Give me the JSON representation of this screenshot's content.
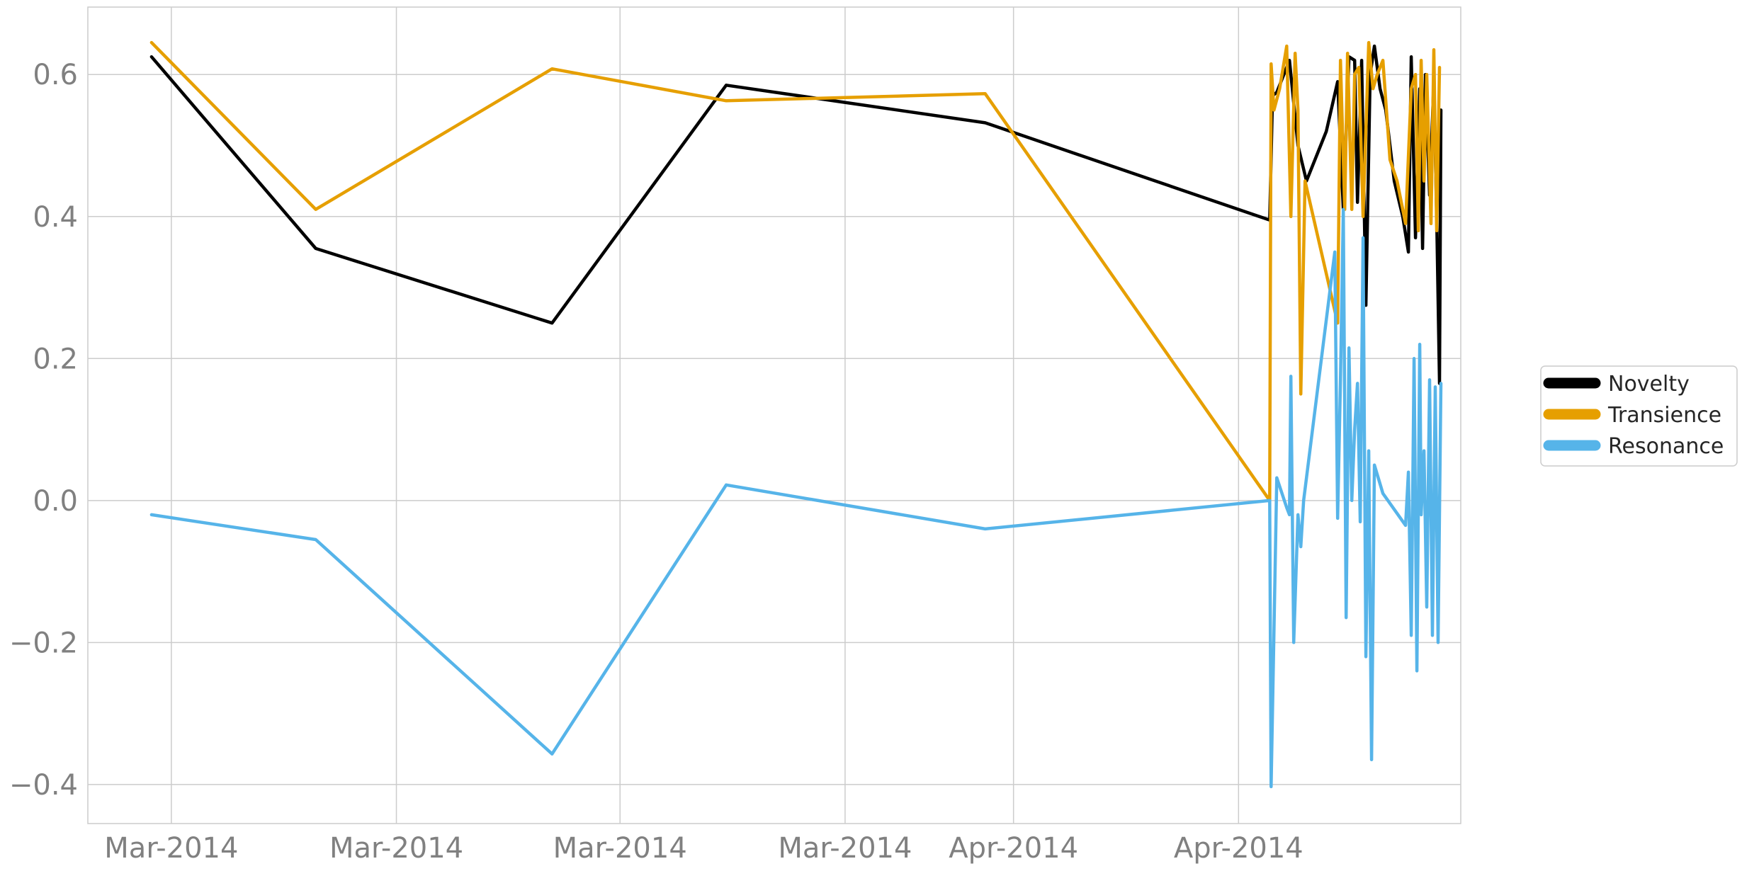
{
  "chart_data": {
    "type": "line",
    "title": "",
    "xlabel": "",
    "ylabel": "",
    "grid": true,
    "legend_position": "right",
    "ylim": [
      -0.455,
      0.695
    ],
    "xlim": [
      -0.45,
      9.25
    ],
    "yticks": [
      {
        "value": 0.6,
        "label": "0.6"
      },
      {
        "value": 0.4,
        "label": "0.4"
      },
      {
        "value": 0.2,
        "label": "0.2"
      },
      {
        "value": 0.0,
        "label": "0.0"
      },
      {
        "value": -0.2,
        "label": "−0.2"
      },
      {
        "value": -0.4,
        "label": "−0.4"
      }
    ],
    "xticks": [
      {
        "value": 0.14,
        "label": "Mar-2014"
      },
      {
        "value": 1.73,
        "label": "Mar-2014"
      },
      {
        "value": 3.31,
        "label": "Mar-2014"
      },
      {
        "value": 4.9,
        "label": "Mar-2014"
      },
      {
        "value": 6.09,
        "label": "Apr-2014"
      },
      {
        "value": 7.68,
        "label": "Apr-2014"
      }
    ],
    "series": [
      {
        "name": "Novelty",
        "color": "#000000",
        "points": [
          [
            0.0,
            0.625
          ],
          [
            1.16,
            0.355
          ],
          [
            2.83,
            0.25
          ],
          [
            4.06,
            0.585
          ],
          [
            5.89,
            0.532
          ],
          [
            7.9,
            0.395
          ],
          [
            7.92,
            0.57
          ],
          [
            7.95,
            0.575
          ],
          [
            7.98,
            0.59
          ],
          [
            8.04,
            0.62
          ],
          [
            8.1,
            0.5
          ],
          [
            8.16,
            0.45
          ],
          [
            8.3,
            0.52
          ],
          [
            8.38,
            0.59
          ],
          [
            8.42,
            0.41
          ],
          [
            8.46,
            0.625
          ],
          [
            8.5,
            0.62
          ],
          [
            8.52,
            0.42
          ],
          [
            8.55,
            0.62
          ],
          [
            8.58,
            0.275
          ],
          [
            8.61,
            0.6
          ],
          [
            8.64,
            0.64
          ],
          [
            8.68,
            0.58
          ],
          [
            8.72,
            0.55
          ],
          [
            8.78,
            0.45
          ],
          [
            8.84,
            0.4
          ],
          [
            8.88,
            0.35
          ],
          [
            8.9,
            0.625
          ],
          [
            8.93,
            0.37
          ],
          [
            8.96,
            0.58
          ],
          [
            8.98,
            0.355
          ],
          [
            9.0,
            0.6
          ],
          [
            9.03,
            0.43
          ],
          [
            9.06,
            0.59
          ],
          [
            9.08,
            0.4
          ],
          [
            9.1,
            0.165
          ],
          [
            9.11,
            0.55
          ]
        ]
      },
      {
        "name": "Transience",
        "color": "#E69F00",
        "points": [
          [
            0.0,
            0.645
          ],
          [
            1.16,
            0.41
          ],
          [
            2.83,
            0.608
          ],
          [
            4.06,
            0.563
          ],
          [
            5.89,
            0.573
          ],
          [
            7.9,
            0.0
          ],
          [
            7.91,
            0.615
          ],
          [
            7.93,
            0.55
          ],
          [
            7.97,
            0.58
          ],
          [
            8.02,
            0.64
          ],
          [
            8.05,
            0.4
          ],
          [
            8.08,
            0.63
          ],
          [
            8.1,
            0.55
          ],
          [
            8.12,
            0.15
          ],
          [
            8.15,
            0.45
          ],
          [
            8.38,
            0.25
          ],
          [
            8.4,
            0.62
          ],
          [
            8.43,
            0.41
          ],
          [
            8.45,
            0.63
          ],
          [
            8.48,
            0.41
          ],
          [
            8.5,
            0.6
          ],
          [
            8.53,
            0.61
          ],
          [
            8.56,
            0.4
          ],
          [
            8.6,
            0.645
          ],
          [
            8.63,
            0.58
          ],
          [
            8.66,
            0.6
          ],
          [
            8.7,
            0.62
          ],
          [
            8.75,
            0.48
          ],
          [
            8.8,
            0.45
          ],
          [
            8.86,
            0.39
          ],
          [
            8.9,
            0.58
          ],
          [
            8.93,
            0.6
          ],
          [
            8.95,
            0.38
          ],
          [
            8.97,
            0.62
          ],
          [
            8.99,
            0.45
          ],
          [
            9.01,
            0.6
          ],
          [
            9.04,
            0.39
          ],
          [
            9.06,
            0.635
          ],
          [
            9.08,
            0.38
          ],
          [
            9.1,
            0.61
          ]
        ]
      },
      {
        "name": "Resonance",
        "color": "#56B4E9",
        "points": [
          [
            0.0,
            -0.02
          ],
          [
            1.16,
            -0.055
          ],
          [
            2.83,
            -0.357
          ],
          [
            4.06,
            0.022
          ],
          [
            5.89,
            -0.04
          ],
          [
            7.9,
            0.0
          ],
          [
            7.91,
            -0.403
          ],
          [
            7.95,
            0.032
          ],
          [
            8.02,
            -0.01
          ],
          [
            8.04,
            -0.02
          ],
          [
            8.05,
            0.175
          ],
          [
            8.07,
            -0.2
          ],
          [
            8.1,
            -0.02
          ],
          [
            8.12,
            -0.065
          ],
          [
            8.14,
            0.0
          ],
          [
            8.36,
            0.35
          ],
          [
            8.38,
            -0.025
          ],
          [
            8.4,
            0.17
          ],
          [
            8.42,
            0.41
          ],
          [
            8.44,
            -0.165
          ],
          [
            8.46,
            0.215
          ],
          [
            8.48,
            0.0
          ],
          [
            8.5,
            0.1
          ],
          [
            8.52,
            0.165
          ],
          [
            8.54,
            -0.03
          ],
          [
            8.56,
            0.37
          ],
          [
            8.58,
            -0.22
          ],
          [
            8.6,
            0.07
          ],
          [
            8.62,
            -0.365
          ],
          [
            8.64,
            0.05
          ],
          [
            8.7,
            0.01
          ],
          [
            8.86,
            -0.035
          ],
          [
            8.88,
            0.04
          ],
          [
            8.9,
            -0.19
          ],
          [
            8.92,
            0.2
          ],
          [
            8.94,
            -0.24
          ],
          [
            8.96,
            0.22
          ],
          [
            8.97,
            -0.02
          ],
          [
            8.99,
            0.07
          ],
          [
            9.01,
            -0.15
          ],
          [
            9.03,
            0.17
          ],
          [
            9.05,
            -0.19
          ],
          [
            9.07,
            0.16
          ],
          [
            9.09,
            -0.2
          ],
          [
            9.11,
            0.165
          ]
        ]
      }
    ]
  }
}
